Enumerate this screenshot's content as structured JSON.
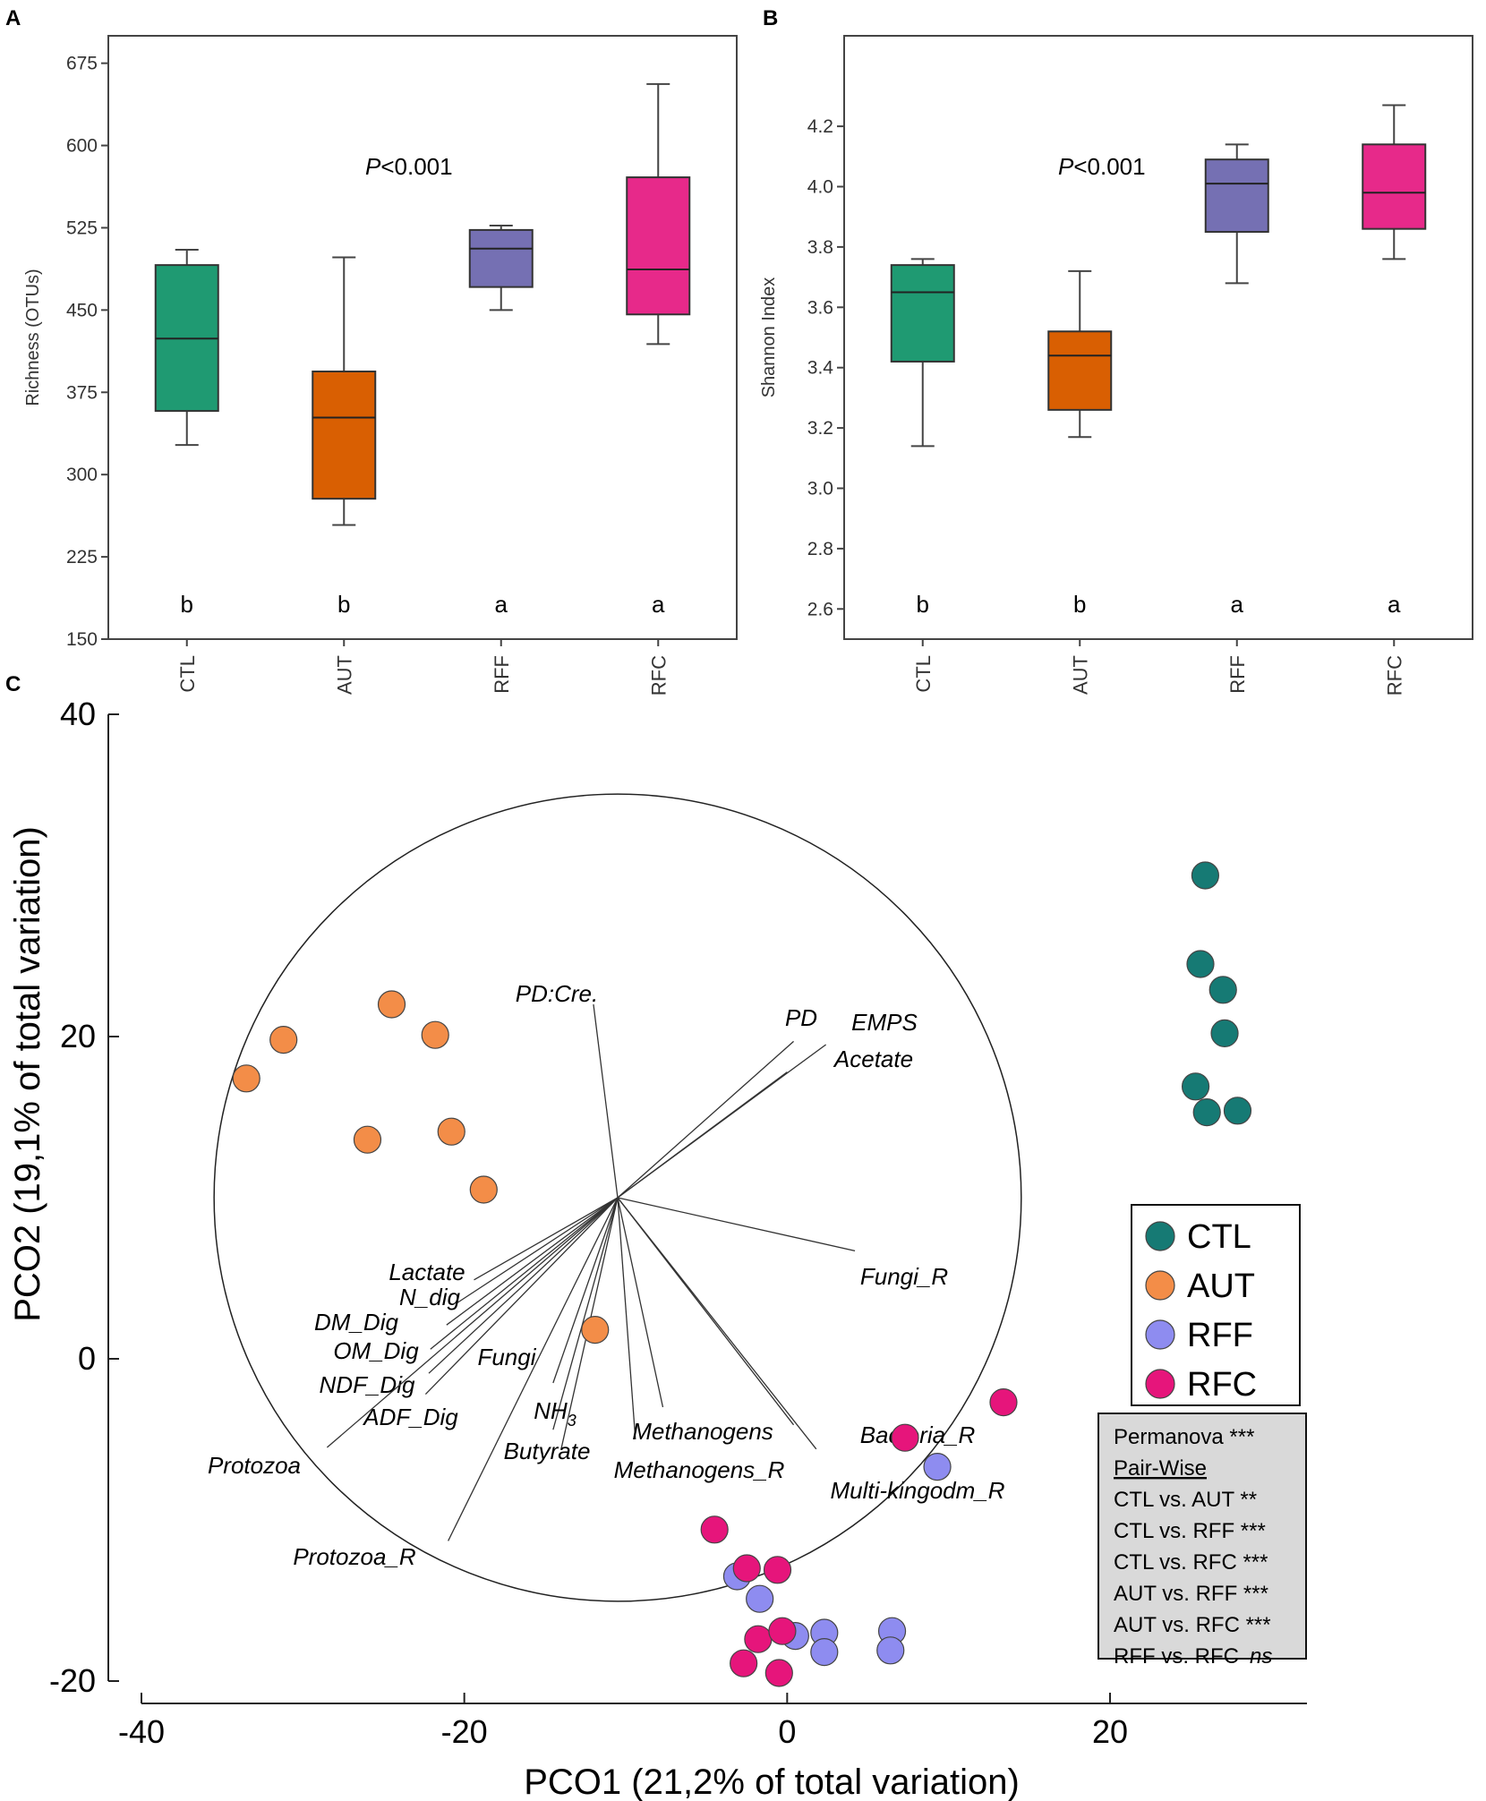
{
  "panels": {
    "A": {
      "label": "A"
    },
    "B": {
      "label": "B"
    },
    "C": {
      "label": "C"
    }
  },
  "colors": {
    "CTL": "#1f9a72",
    "AUT": "#d95f02",
    "RFF": "#7570b3",
    "RFC": "#e7298a",
    "pco_CTL": "#167a74",
    "pco_AUT": "#f38d48",
    "pco_RFF": "#8e8cf0",
    "pco_RFC": "#e6157b",
    "stats_box_bg": "#d9d9d9"
  },
  "chart_data": [
    {
      "id": "A",
      "type": "box",
      "title": "",
      "ylabel": "Richness (OTUs)",
      "ylim": [
        150,
        700
      ],
      "yticks": [
        150,
        225,
        300,
        375,
        450,
        525,
        600,
        675
      ],
      "categories": [
        "CTL",
        "AUT",
        "RFF",
        "RFC"
      ],
      "boxes": [
        {
          "name": "CTL",
          "min": 327,
          "q1": 358,
          "median": 424,
          "q3": 491,
          "max": 505
        },
        {
          "name": "AUT",
          "min": 254,
          "q1": 278,
          "median": 352,
          "q3": 394,
          "max": 498
        },
        {
          "name": "RFF",
          "min": 450,
          "q1": 471,
          "median": 506,
          "q3": 523,
          "max": 527
        },
        {
          "name": "RFC",
          "min": 419,
          "q1": 446,
          "median": 487,
          "q3": 571,
          "max": 656
        }
      ],
      "letters": [
        "b",
        "b",
        "a",
        "a"
      ],
      "annotation_italic": "P",
      "annotation_rest": "<0.001"
    },
    {
      "id": "B",
      "type": "box",
      "title": "",
      "ylabel": "Shannon Index",
      "ylim": [
        2.5,
        4.5
      ],
      "yticks": [
        "2.6",
        "2.8",
        "3.0",
        "3.2",
        "3.4",
        "3.6",
        "3.8",
        "4.0",
        "4.2"
      ],
      "categories": [
        "CTL",
        "AUT",
        "RFF",
        "RFC"
      ],
      "boxes": [
        {
          "name": "CTL",
          "min": 3.14,
          "q1": 3.42,
          "median": 3.65,
          "q3": 3.74,
          "max": 3.76
        },
        {
          "name": "AUT",
          "min": 3.17,
          "q1": 3.26,
          "median": 3.44,
          "q3": 3.52,
          "max": 3.72
        },
        {
          "name": "RFF",
          "min": 3.68,
          "q1": 3.85,
          "median": 4.01,
          "q3": 4.09,
          "max": 4.14
        },
        {
          "name": "RFC",
          "min": 3.76,
          "q1": 3.86,
          "median": 3.98,
          "q3": 4.14,
          "max": 4.27
        }
      ],
      "letters": [
        "b",
        "b",
        "a",
        "a"
      ],
      "annotation_italic": "P",
      "annotation_rest": "<0.001"
    },
    {
      "id": "C",
      "type": "scatter",
      "xlabel": "PCO1 (21,2% of total variation)",
      "ylabel": "PCO2 (19,1% of total variation)",
      "xlim": [
        -40,
        32
      ],
      "ylim": [
        -20,
        40
      ],
      "xticks": [
        "-40",
        "-20",
        "0",
        "20"
      ],
      "yticks": [
        "-20",
        "0",
        "20",
        "40"
      ],
      "circle": {
        "cx": -10.5,
        "cy": 10,
        "r": 25
      },
      "series": [
        {
          "name": "CTL",
          "points": [
            [
              25.9,
              30.0
            ],
            [
              25.6,
              24.5
            ],
            [
              27.0,
              22.9
            ],
            [
              27.1,
              20.2
            ],
            [
              25.3,
              16.9
            ],
            [
              26.0,
              15.3
            ],
            [
              27.9,
              15.4
            ]
          ]
        },
        {
          "name": "AUT",
          "points": [
            [
              -24.5,
              22.0
            ],
            [
              -31.2,
              19.8
            ],
            [
              -21.8,
              20.1
            ],
            [
              -33.5,
              17.4
            ],
            [
              -26.0,
              13.6
            ],
            [
              -20.8,
              14.1
            ],
            [
              -18.8,
              10.5
            ],
            [
              -11.9,
              1.8
            ]
          ]
        },
        {
          "name": "RFF",
          "points": [
            [
              9.3,
              -6.7
            ],
            [
              -3.1,
              -13.5
            ],
            [
              -1.7,
              -14.9
            ],
            [
              0.5,
              -17.2
            ],
            [
              2.3,
              -17.0
            ],
            [
              6.5,
              -16.9
            ],
            [
              2.3,
              -18.2
            ],
            [
              6.4,
              -18.1
            ]
          ]
        },
        {
          "name": "RFC",
          "points": [
            [
              13.4,
              -2.7
            ],
            [
              7.3,
              -4.9
            ],
            [
              -4.5,
              -10.6
            ],
            [
              -2.5,
              -13.0
            ],
            [
              -0.6,
              -13.1
            ],
            [
              -1.8,
              -17.4
            ],
            [
              -0.3,
              -16.9
            ],
            [
              -2.7,
              -18.9
            ],
            [
              -0.5,
              -19.5
            ]
          ]
        }
      ],
      "vectors": [
        {
          "label": "PD:Cre.",
          "to": [
            -12.0,
            22.0
          ]
        },
        {
          "label": "PD",
          "to": [
            0.4,
            19.7
          ]
        },
        {
          "label": "EMPS",
          "to": [
            2.4,
            19.5
          ]
        },
        {
          "label": "Acetate",
          "to": [
            0.0,
            17.8
          ]
        },
        {
          "label": "Fungi_R",
          "to": [
            4.2,
            6.7
          ]
        },
        {
          "label": "Lactate",
          "to": [
            -19.4,
            4.9
          ]
        },
        {
          "label": "N_dig",
          "to": [
            -20.4,
            3.5
          ]
        },
        {
          "label": "DM_Dig",
          "to": [
            -21.1,
            2.1
          ]
        },
        {
          "label": "OM_Dig",
          "to": [
            -22.1,
            0.6
          ]
        },
        {
          "label": "NDF_Dig",
          "to": [
            -22.2,
            -0.9
          ]
        },
        {
          "label": "ADF_Dig",
          "to": [
            -22.4,
            -2.2
          ]
        },
        {
          "label": "Protozoa",
          "to": [
            -28.5,
            -5.5
          ]
        },
        {
          "label": "Protozoa_R",
          "to": [
            -21.0,
            -11.3
          ]
        },
        {
          "label": "Fungi",
          "to": [
            -14.5,
            -1.5
          ]
        },
        {
          "label": "NH3",
          "to": [
            -14.5,
            -4.4
          ]
        },
        {
          "label": "Butyrate",
          "to": [
            -14.0,
            -5.6
          ]
        },
        {
          "label": "Methanogens",
          "to": [
            -9.4,
            -5.0
          ]
        },
        {
          "label": "Methanogens_R",
          "to": [
            -7.7,
            -3.0
          ]
        },
        {
          "label": "Bacteria_R",
          "to": [
            1.8,
            -5.6
          ]
        },
        {
          "label": "Multi-kingodm_R",
          "to": [
            0.4,
            -4.1
          ]
        }
      ],
      "vector_origin": [
        -10.5,
        10.0
      ],
      "legend": [
        "CTL",
        "AUT",
        "RFF",
        "RFC"
      ],
      "stats": {
        "line1": "Permanova ***",
        "line2": "Pair-Wise",
        "line3": "CTL vs. AUT **",
        "line4": "CTL vs. RFF ***",
        "line5": "CTL vs. RFC ***",
        "line6": "AUT vs. RFF ***",
        "line7": "AUT vs. RFC ***",
        "line8_prefix": "RFF vs. RFC",
        "line8_italic": "ns"
      }
    }
  ]
}
